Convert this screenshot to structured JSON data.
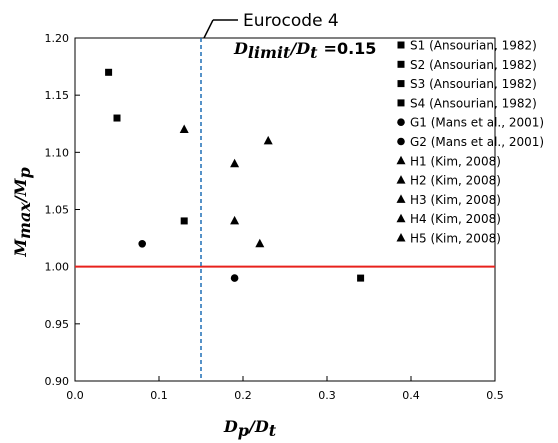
{
  "chart_data": {
    "type": "scatter",
    "xlim": [
      0.0,
      0.5
    ],
    "ylim": [
      0.9,
      1.2
    ],
    "x_ticks": [
      "0.0",
      "0.1",
      "0.2",
      "0.3",
      "0.4",
      "0.5"
    ],
    "y_ticks": [
      "0.90",
      "0.95",
      "1.00",
      "1.05",
      "1.10",
      "1.15",
      "1.20"
    ],
    "xlabel": {
      "main": "D",
      "sub1": "p",
      "slash": "/",
      "main2": "D",
      "sub2": "t"
    },
    "ylabel": {
      "main": "M",
      "sub1": "max",
      "slash": "/",
      "main2": "M",
      "sub2": "p"
    },
    "grid": false,
    "legend_position": "right",
    "series": [
      {
        "name": "S1 (Ansourian, 1982)",
        "marker": "square",
        "points": [
          [
            0.04,
            1.17
          ]
        ]
      },
      {
        "name": "S2 (Ansourian, 1982)",
        "marker": "square",
        "points": [
          [
            0.05,
            1.13
          ]
        ]
      },
      {
        "name": "S3 (Ansourian, 1982)",
        "marker": "square",
        "points": [
          [
            0.13,
            1.04
          ]
        ]
      },
      {
        "name": "S4 (Ansourian, 1982)",
        "marker": "square",
        "points": [
          [
            0.34,
            0.99
          ]
        ]
      },
      {
        "name": "G1 (Mans et al., 2001)",
        "marker": "circle",
        "points": [
          [
            0.08,
            1.02
          ]
        ]
      },
      {
        "name": "G2 (Mans et al., 2001)",
        "marker": "circle",
        "points": [
          [
            0.19,
            0.99
          ]
        ]
      },
      {
        "name": "H1 (Kim, 2008)",
        "marker": "triangle",
        "points": [
          [
            0.13,
            1.12
          ]
        ]
      },
      {
        "name": "H2 (Kim, 2008)",
        "marker": "triangle",
        "points": [
          [
            0.19,
            1.09
          ]
        ]
      },
      {
        "name": "H3 (Kim, 2008)",
        "marker": "triangle",
        "points": [
          [
            0.19,
            1.04
          ]
        ]
      },
      {
        "name": "H4 (Kim, 2008)",
        "marker": "triangle",
        "points": [
          [
            0.22,
            1.02
          ]
        ]
      },
      {
        "name": "H5 (Kim, 2008)",
        "marker": "triangle",
        "points": [
          [
            0.23,
            1.11
          ]
        ]
      }
    ],
    "reference_line": {
      "y": 1.0,
      "color": "#e8211c"
    },
    "limit_line": {
      "x": 0.15,
      "color": "#1f6fb5",
      "style": "dashed"
    },
    "annotation": {
      "code": "Eurocode 4",
      "limit_main": "D",
      "limit_sub1": "limit",
      "limit_slash": "/",
      "limit_main2": "D",
      "limit_sub2": "t",
      "limit_value": "=0.15"
    }
  }
}
